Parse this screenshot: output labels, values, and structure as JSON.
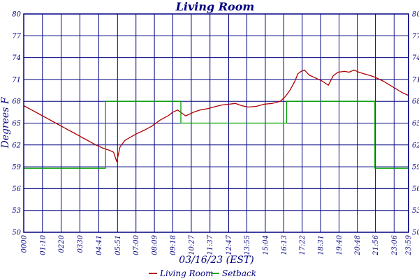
{
  "chart_data": {
    "type": "line",
    "title": "Living Room",
    "xlabel": "03/16/23 (EST)",
    "ylabel": "Degrees F",
    "x_unit": "hours",
    "xlim": [
      0,
      24
    ],
    "ylim": [
      50,
      80
    ],
    "y_ticks": [
      50,
      53,
      56,
      59,
      62,
      65,
      68,
      71,
      74,
      77,
      80
    ],
    "x_tick_labels": [
      "0000",
      "01:10",
      "0220",
      "0330",
      "04:41",
      "05:51",
      "07:00",
      "08:09",
      "09:18",
      "10:27",
      "11:37",
      "12:47",
      "13:55",
      "15:04",
      "16:13",
      "17:22",
      "18:31",
      "19:40",
      "20:48",
      "21:56",
      "23:06",
      "23:59"
    ],
    "x_tick_values": [
      0,
      1.167,
      2.333,
      3.5,
      4.683,
      5.85,
      7.0,
      8.15,
      9.3,
      10.45,
      11.617,
      12.783,
      13.917,
      15.067,
      16.217,
      17.367,
      18.517,
      19.667,
      20.8,
      21.933,
      23.1,
      23.983
    ],
    "grid": true,
    "legend_position": "bottom",
    "series": [
      {
        "name": "Living Room",
        "color": "#b00000",
        "x": [
          0,
          0.5,
          1.0,
          1.5,
          2.0,
          2.5,
          3.0,
          3.5,
          4.0,
          4.5,
          5.0,
          5.3,
          5.6,
          5.8,
          6.0,
          6.3,
          6.6,
          7.0,
          7.5,
          8.0,
          8.5,
          9.0,
          9.3,
          9.6,
          9.9,
          10.1,
          10.3,
          10.6,
          11.0,
          11.5,
          12.0,
          12.4,
          12.8,
          13.2,
          13.6,
          14.0,
          14.5,
          15.0,
          15.5,
          16.0,
          16.3,
          16.6,
          16.9,
          17.1,
          17.3,
          17.5,
          17.8,
          18.2,
          18.6,
          19.0,
          19.3,
          19.6,
          20.0,
          20.3,
          20.6,
          20.9,
          21.2,
          21.5,
          21.8,
          22.1,
          22.4,
          22.7,
          23.0,
          23.3,
          23.6,
          24.0
        ],
        "y": [
          67.4,
          66.8,
          66.2,
          65.6,
          65.0,
          64.4,
          63.8,
          63.2,
          62.6,
          62.0,
          61.5,
          61.3,
          61.0,
          59.7,
          61.7,
          62.6,
          63.0,
          63.5,
          64.0,
          64.6,
          65.4,
          66.0,
          66.5,
          66.8,
          66.3,
          66.0,
          66.2,
          66.5,
          66.8,
          67.0,
          67.3,
          67.5,
          67.6,
          67.7,
          67.4,
          67.2,
          67.3,
          67.6,
          67.7,
          68.0,
          68.6,
          69.5,
          70.7,
          71.8,
          72.1,
          72.3,
          71.6,
          71.2,
          70.8,
          70.2,
          71.5,
          72.0,
          72.1,
          72.0,
          72.3,
          72.0,
          71.8,
          71.6,
          71.4,
          71.1,
          70.8,
          70.4,
          70.0,
          69.6,
          69.2,
          68.8
        ]
      },
      {
        "name": "Setback",
        "color": "#00a000",
        "x": [
          0,
          5.1,
          5.1,
          9.8,
          9.8,
          16.4,
          16.4,
          21.9,
          21.9,
          24.0
        ],
        "y": [
          58.8,
          58.8,
          68.0,
          68.0,
          65.0,
          65.0,
          68.0,
          68.0,
          58.8,
          58.8
        ]
      }
    ]
  }
}
